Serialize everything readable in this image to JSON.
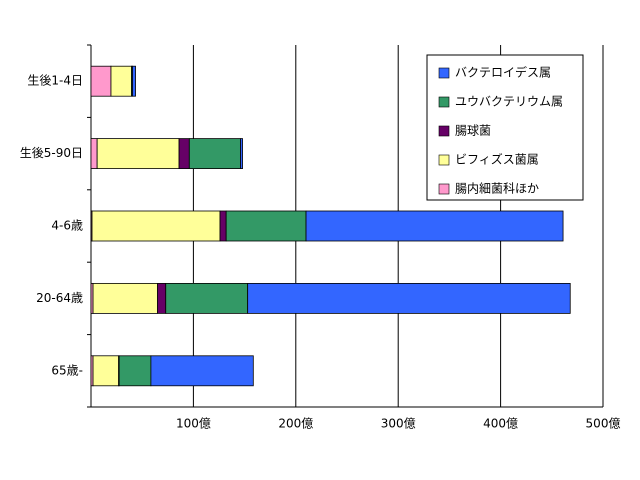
{
  "chart_data": {
    "type": "bar",
    "orientation": "horizontal",
    "stacked": true,
    "categories": [
      "生後1-4日",
      "生後5-90日",
      "4-6歳",
      "20-64歳",
      "65歳-"
    ],
    "series": [
      {
        "name": "バクテロイデス属",
        "color": "#3366ff",
        "values": [
          3,
          2,
          251,
          315,
          100
        ]
      },
      {
        "name": "ユウバクテリウム属",
        "color": "#339966",
        "values": [
          1,
          50,
          78,
          80,
          31
        ]
      },
      {
        "name": "腸球菌",
        "color": "#660066",
        "values": [
          0,
          10,
          6,
          8,
          0.5
        ]
      },
      {
        "name": "ビフィズス菌属",
        "color": "#ffff99",
        "values": [
          20,
          80,
          125,
          63,
          25
        ]
      },
      {
        "name": "腸内細菌科ほか",
        "color": "#ff99cc",
        "values": [
          19.5,
          6,
          1,
          2,
          2
        ]
      }
    ],
    "xlim": [
      0,
      500
    ],
    "xticks": [
      {
        "value": 100,
        "label": "100億"
      },
      {
        "value": 200,
        "label": "200億"
      },
      {
        "value": 300,
        "label": "300億"
      },
      {
        "value": 400,
        "label": "400億"
      },
      {
        "value": 500,
        "label": "500億"
      }
    ],
    "grid": true,
    "legend": "top-right"
  }
}
